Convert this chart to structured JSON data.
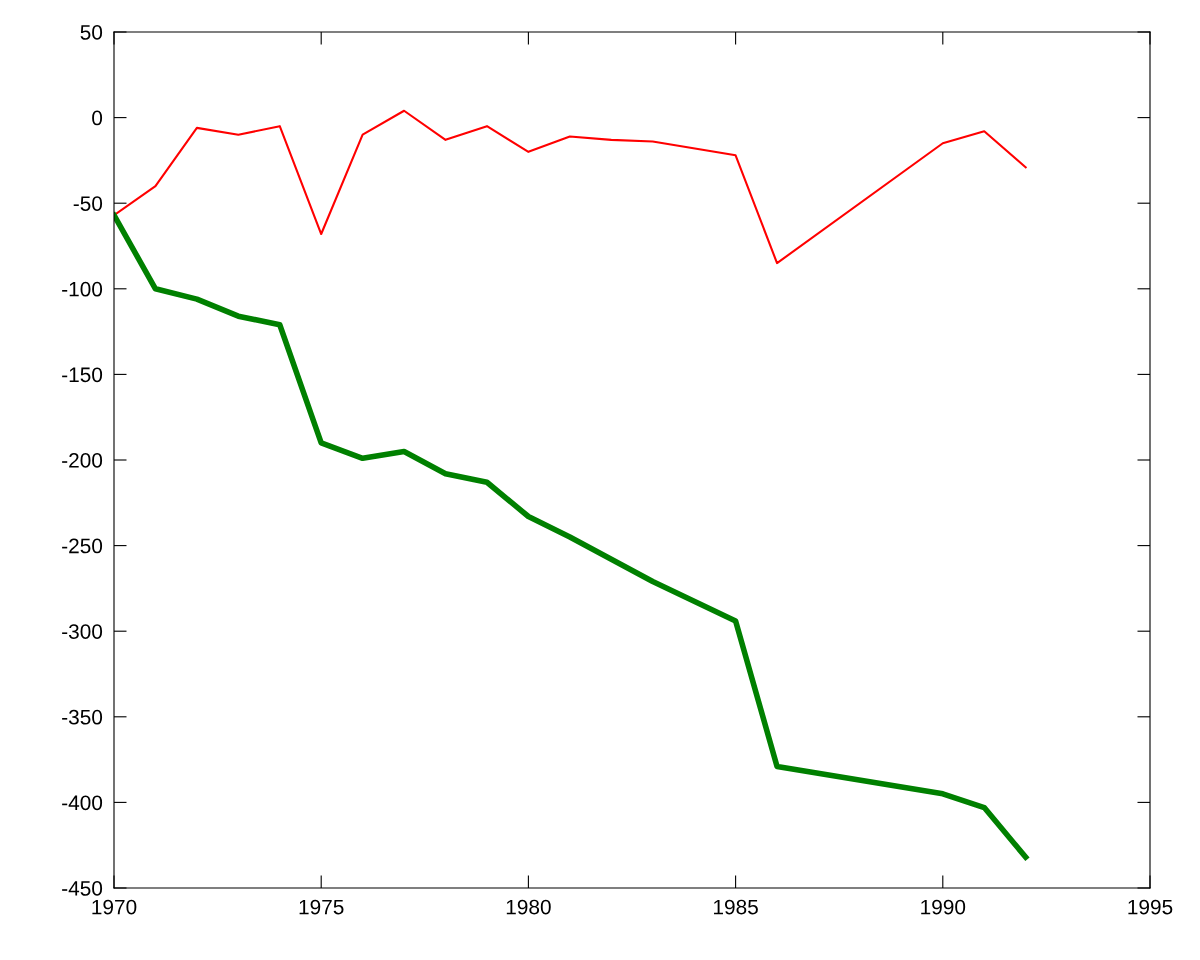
{
  "chart_data": {
    "type": "line",
    "xlim": [
      1970,
      1995
    ],
    "xticks": [
      1970,
      1975,
      1980,
      1985,
      1990,
      1995
    ],
    "ylim": [
      -450,
      50
    ],
    "yticks": [
      -450,
      -400,
      -350,
      -300,
      -250,
      -200,
      -150,
      -100,
      -50,
      0,
      50
    ],
    "grid": false,
    "marker": "none",
    "line_style": "solid",
    "series": [
      {
        "color": "#ff0000",
        "x": [
          1970,
          1971,
          1972,
          1973,
          1974,
          1975,
          1976,
          1977,
          1978,
          1979,
          1980,
          1981,
          1982,
          1983,
          1985,
          1986,
          1990,
          1991,
          1992
        ],
        "values": [
          -57,
          -40,
          -6,
          -10,
          -5,
          -68,
          -10,
          4,
          -13,
          -5,
          -20,
          -11,
          -13,
          -14,
          -22,
          -85,
          -15,
          -8,
          -29
        ]
      },
      {
        "color": "#008000",
        "x": [
          1970,
          1971,
          1972,
          1973,
          1974,
          1975,
          1976,
          1977,
          1978,
          1979,
          1980,
          1981,
          1982,
          1983,
          1985,
          1986,
          1990,
          1991,
          1992
        ],
        "values": [
          -57,
          -100,
          -106,
          -116,
          -121,
          -190,
          -199,
          -195,
          -208,
          -213,
          -233,
          -245,
          -258,
          -271,
          -294,
          -379,
          -395,
          -403,
          -432
        ]
      }
    ]
  }
}
